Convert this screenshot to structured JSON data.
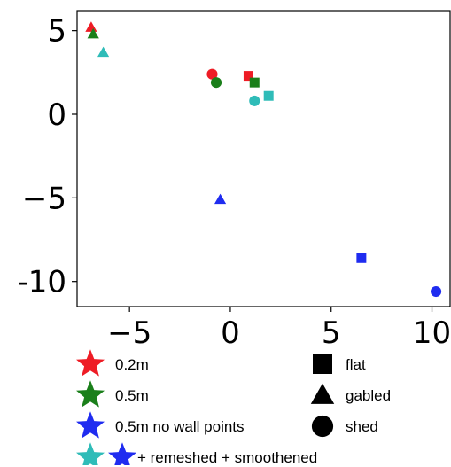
{
  "chart_data": {
    "type": "scatter",
    "title": "",
    "xlabel": "",
    "ylabel": "",
    "xlim": [
      -7.6,
      10.9
    ],
    "ylim": [
      -11.5,
      6.2
    ],
    "xticks": [
      -5,
      0,
      5,
      10
    ],
    "yticks": [
      5,
      0,
      -5,
      -10
    ],
    "xtick_labels": [
      "−5",
      "0",
      "5",
      "10"
    ],
    "ytick_labels": [
      "5",
      "0",
      "−5",
      "-10"
    ],
    "grid": false,
    "colors": {
      "red": "#ee1c25",
      "green": "#1a7f1a",
      "blue": "#1f2cf0",
      "teal": "#2fbcb8"
    },
    "points": [
      {
        "x": -6.9,
        "y": 5.2,
        "color": "red",
        "shape": "triangle"
      },
      {
        "x": 0.9,
        "y": 2.3,
        "color": "red",
        "shape": "square"
      },
      {
        "x": -0.9,
        "y": 2.4,
        "color": "red",
        "shape": "circle"
      },
      {
        "x": -6.8,
        "y": 4.8,
        "color": "green",
        "shape": "triangle"
      },
      {
        "x": 1.2,
        "y": 1.9,
        "color": "green",
        "shape": "square"
      },
      {
        "x": -0.7,
        "y": 1.9,
        "color": "green",
        "shape": "circle"
      },
      {
        "x": -0.5,
        "y": -5.1,
        "color": "blue",
        "shape": "triangle"
      },
      {
        "x": 6.5,
        "y": -8.6,
        "color": "blue",
        "shape": "square"
      },
      {
        "x": 10.2,
        "y": -10.6,
        "color": "blue",
        "shape": "circle"
      },
      {
        "x": -6.3,
        "y": 3.7,
        "color": "teal",
        "shape": "triangle"
      },
      {
        "x": 1.9,
        "y": 1.1,
        "color": "teal",
        "shape": "square"
      },
      {
        "x": 1.2,
        "y": 0.8,
        "color": "teal",
        "shape": "circle"
      }
    ],
    "legend": {
      "placement": "bottom",
      "colors": [
        {
          "label": "0.2m",
          "color": "red"
        },
        {
          "label": "0.5m",
          "color": "green"
        },
        {
          "label": "0.5m no wall points",
          "color": "blue"
        },
        {
          "label": "+ remeshed + smoothened",
          "colors": [
            "teal",
            "blue"
          ]
        }
      ],
      "shapes": [
        {
          "label": "flat",
          "shape": "square"
        },
        {
          "label": "gabled",
          "shape": "triangle"
        },
        {
          "label": "shed",
          "shape": "circle"
        }
      ]
    }
  }
}
